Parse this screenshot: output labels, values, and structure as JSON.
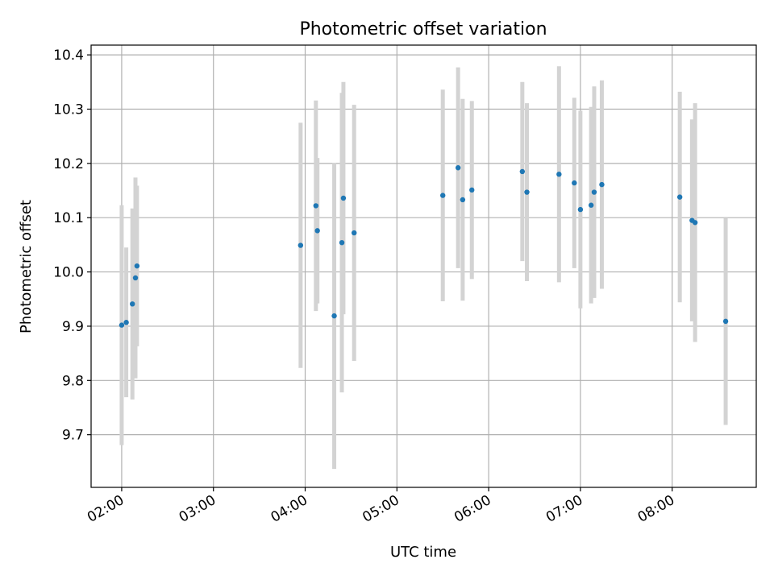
{
  "chart_data": {
    "type": "scatter",
    "title": "Photometric offset variation",
    "xlabel": "UTC time",
    "ylabel": "Photometric offset",
    "x_tick_labels": [
      "02:00",
      "03:00",
      "04:00",
      "05:00",
      "06:00",
      "07:00",
      "08:00"
    ],
    "y_tick_labels": [
      "9.7",
      "9.8",
      "9.9",
      "10.0",
      "10.1",
      "10.2",
      "10.3",
      "10.4"
    ],
    "xlim": [
      "01:40",
      "08:55"
    ],
    "ylim": [
      9.603,
      10.418
    ],
    "grid": true,
    "colors": {
      "points": "#1f77b4",
      "errorbars": "#d3d3d3",
      "grid": "#b0b0b0"
    },
    "points": [
      {
        "x": "02:00",
        "y": 9.902,
        "err": 0.221
      },
      {
        "x": "02:03",
        "y": 9.907,
        "err": 0.138
      },
      {
        "x": "02:07",
        "y": 9.941,
        "err": 0.176
      },
      {
        "x": "02:09",
        "y": 9.989,
        "err": 0.185
      },
      {
        "x": "02:10",
        "y": 10.011,
        "err": 0.148
      },
      {
        "x": "03:57",
        "y": 10.049,
        "err": 0.226
      },
      {
        "x": "04:07",
        "y": 10.122,
        "err": 0.194
      },
      {
        "x": "04:08",
        "y": 10.076,
        "err": 0.134
      },
      {
        "x": "04:19",
        "y": 9.919,
        "err": 0.282
      },
      {
        "x": "04:24",
        "y": 10.054,
        "err": 0.276
      },
      {
        "x": "04:25",
        "y": 10.136,
        "err": 0.214
      },
      {
        "x": "04:32",
        "y": 10.072,
        "err": 0.236
      },
      {
        "x": "05:30",
        "y": 10.141,
        "err": 0.195
      },
      {
        "x": "05:40",
        "y": 10.192,
        "err": 0.185
      },
      {
        "x": "05:43",
        "y": 10.133,
        "err": 0.186
      },
      {
        "x": "05:49",
        "y": 10.151,
        "err": 0.164
      },
      {
        "x": "06:22",
        "y": 10.185,
        "err": 0.165
      },
      {
        "x": "06:25",
        "y": 10.147,
        "err": 0.164
      },
      {
        "x": "06:46",
        "y": 10.18,
        "err": 0.199
      },
      {
        "x": "06:56",
        "y": 10.164,
        "err": 0.157
      },
      {
        "x": "07:00",
        "y": 10.115,
        "err": 0.182
      },
      {
        "x": "07:07",
        "y": 10.123,
        "err": 0.181
      },
      {
        "x": "07:09",
        "y": 10.147,
        "err": 0.195
      },
      {
        "x": "07:14",
        "y": 10.161,
        "err": 0.192
      },
      {
        "x": "08:05",
        "y": 10.138,
        "err": 0.194
      },
      {
        "x": "08:13",
        "y": 10.095,
        "err": 0.186
      },
      {
        "x": "08:15",
        "y": 10.091,
        "err": 0.22
      },
      {
        "x": "08:35",
        "y": 9.909,
        "err": 0.191
      }
    ]
  }
}
